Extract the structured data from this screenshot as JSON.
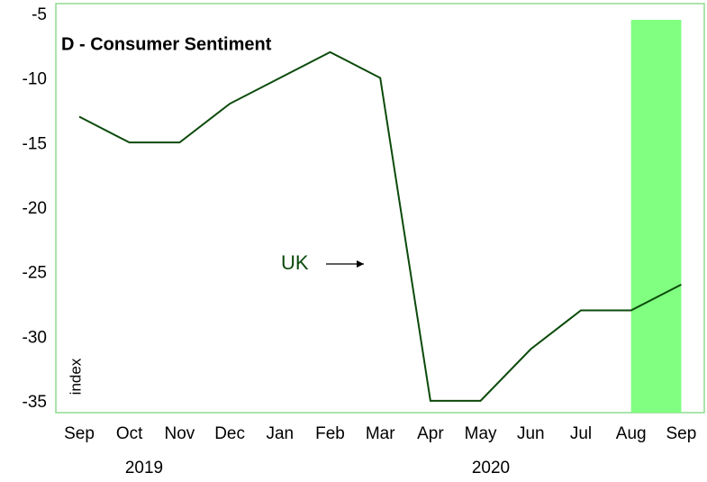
{
  "chart_data": {
    "type": "line",
    "title": "D - Consumer Sentiment",
    "categories": [
      "Sep",
      "Oct",
      "Nov",
      "Dec",
      "Jan",
      "Feb",
      "Mar",
      "Apr",
      "May",
      "Jun",
      "Jul",
      "Aug",
      "Sep"
    ],
    "years": [
      "2019",
      "2020"
    ],
    "series": [
      {
        "name": "UK",
        "color": "#0b4a0b",
        "values": [
          -12.5,
          -14.5,
          -14.5,
          -11.5,
          -9.5,
          -7.5,
          -9.5,
          -34.5,
          -34.5,
          -30.5,
          -27.5,
          -27.5,
          -25.5
        ]
      }
    ],
    "y_label": "index",
    "shaded_categories": [
      11,
      12
    ],
    "shade_color": "#80ff80",
    "ylim": [
      -35,
      -5
    ],
    "yticks": [
      -5,
      -10,
      -15,
      -20,
      -25,
      -30,
      -35
    ],
    "grid": false
  }
}
